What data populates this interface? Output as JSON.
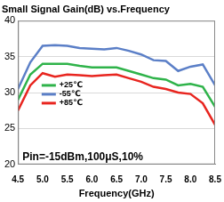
{
  "chart_data": {
    "type": "line",
    "title": "Small Signal Gain(dB) vs.Frequency",
    "x_label": "Frequency(GHz)",
    "annotation": "Pin=-15dBm,100μS,10%",
    "x": [
      4.5,
      4.75,
      5.0,
      5.25,
      5.5,
      5.75,
      6.0,
      6.25,
      6.5,
      6.75,
      7.0,
      7.25,
      7.5,
      7.75,
      8.0,
      8.25,
      8.5
    ],
    "series": [
      {
        "name": "+25℃",
        "color": "#2fb34a",
        "values": [
          29.0,
          32.5,
          34.0,
          34.0,
          34.0,
          33.7,
          33.5,
          33.5,
          33.5,
          33.0,
          32.5,
          32.0,
          31.8,
          31.0,
          31.2,
          30.8,
          28.0
        ]
      },
      {
        "name": "-55℃",
        "color": "#5b7fc7",
        "values": [
          30.5,
          34.2,
          36.5,
          36.6,
          36.5,
          36.2,
          36.1,
          36.0,
          36.2,
          35.8,
          35.3,
          34.5,
          34.4,
          33.0,
          33.6,
          33.9,
          31.0
        ]
      },
      {
        "name": "+85℃",
        "color": "#e8251f",
        "values": [
          27.5,
          31.0,
          32.7,
          32.2,
          32.5,
          32.4,
          32.3,
          32.4,
          32.5,
          32.0,
          31.5,
          30.8,
          30.5,
          30.0,
          29.8,
          28.5,
          25.5
        ]
      }
    ],
    "xlim": [
      4.5,
      8.5
    ],
    "xticks": [
      4.5,
      {
        "value": 5.0,
        "label": "5.0"
      },
      5.5,
      {
        "value": 6.0,
        "label": "6.0"
      },
      6.5,
      {
        "value": 7.0,
        "label": "7.0"
      },
      7.5,
      {
        "value": 8.0,
        "label": "8.0"
      },
      8.5
    ],
    "ylim": [
      20,
      40
    ],
    "yticks": [
      20,
      25,
      30,
      35,
      40
    ],
    "grid": true,
    "legend": "bottom"
  }
}
